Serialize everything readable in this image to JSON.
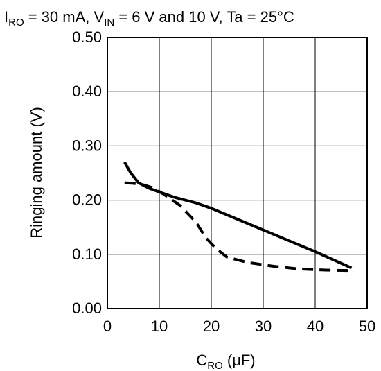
{
  "chart_data": {
    "type": "line",
    "title_parts": {
      "i_symbol": "I",
      "i_sub": "RO",
      "i_value": " = 30 mA, ",
      "v_symbol": "V",
      "v_sub": "IN",
      "v_value": " = 6 V and 10 V, Ta = 25°C"
    },
    "xlabel_parts": {
      "symbol": "C",
      "sub": "RO",
      "unit": " (μF)"
    },
    "ylabel": "Ringing amount (V)",
    "xlim": [
      0,
      50
    ],
    "ylim": [
      0,
      0.5
    ],
    "x_ticks": [
      "0",
      "10",
      "20",
      "30",
      "40",
      "50"
    ],
    "y_ticks": [
      "0.00",
      "0.10",
      "0.20",
      "0.30",
      "0.40",
      "0.50"
    ],
    "grid": true,
    "series": [
      {
        "style": "solid",
        "color": "#000000",
        "x": [
          3.3,
          4.5,
          6,
          8,
          10,
          13,
          17,
          20,
          25,
          30,
          35,
          40,
          47
        ],
        "y": [
          0.27,
          0.25,
          0.232,
          0.222,
          0.215,
          0.205,
          0.195,
          0.185,
          0.165,
          0.145,
          0.125,
          0.105,
          0.075
        ]
      },
      {
        "style": "dashed",
        "color": "#000000",
        "x": [
          3.3,
          5,
          7,
          9,
          11,
          14,
          17,
          19,
          21,
          23,
          27,
          32,
          37,
          42,
          47
        ],
        "y": [
          0.232,
          0.231,
          0.228,
          0.222,
          0.21,
          0.19,
          0.16,
          0.13,
          0.11,
          0.095,
          0.085,
          0.078,
          0.073,
          0.071,
          0.07
        ]
      }
    ]
  }
}
